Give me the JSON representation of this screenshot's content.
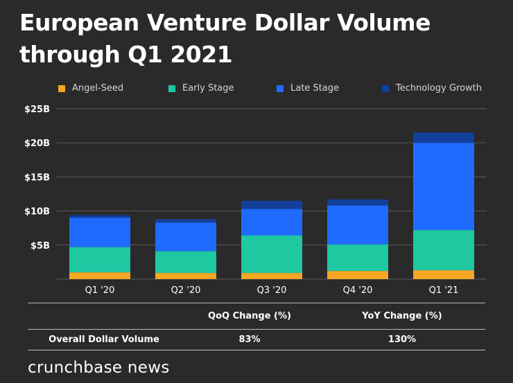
{
  "title_line1": "European Venture Dollar Volume",
  "title_line2": "through Q1 2021",
  "chart_data": {
    "type": "bar",
    "stacked": true,
    "categories": [
      "Q1 '20",
      "Q2 '20",
      "Q3 '20",
      "Q4 '20",
      "Q1 '21"
    ],
    "series": [
      {
        "name": "Angel-Seed",
        "color": "#f5a623",
        "values": [
          1.0,
          0.9,
          0.9,
          1.2,
          1.3
        ]
      },
      {
        "name": "Early Stage",
        "color": "#1ec8a0",
        "values": [
          3.7,
          3.2,
          5.5,
          3.9,
          5.9
        ]
      },
      {
        "name": "Late Stage",
        "color": "#1f6bff",
        "values": [
          4.3,
          4.2,
          3.9,
          5.7,
          12.8
        ]
      },
      {
        "name": "Technology Growth",
        "color": "#123f9a",
        "values": [
          0.4,
          0.5,
          1.2,
          0.9,
          1.5
        ]
      }
    ],
    "yticks": [
      "$5B",
      "$10B",
      "$15B",
      "$20B",
      "$25B"
    ],
    "ylim": [
      0,
      25
    ],
    "grid": true,
    "legend_position": "top"
  },
  "table": {
    "headers": [
      "QoQ Change (%)",
      "YoY Change (%)"
    ],
    "row_label": "Overall Dollar Volume",
    "row_values": [
      "83%",
      "130%"
    ]
  },
  "brand": "crunchbase news"
}
